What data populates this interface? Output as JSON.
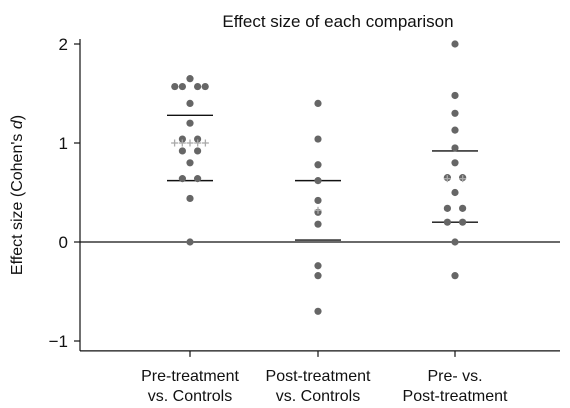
{
  "chart_data": {
    "type": "scatter",
    "title": "Effect size of each comparison",
    "ylabel_prefix": "Effect size (Cohen's ",
    "ylabel_symbol": "d",
    "ylabel_suffix": ")",
    "xlabel": "",
    "ylim": [
      -1.1,
      2.05
    ],
    "yticks": [
      {
        "value": -1,
        "label": "−1"
      },
      {
        "value": 0,
        "label": "0"
      },
      {
        "value": 1,
        "label": "1"
      },
      {
        "value": 2,
        "label": "2"
      }
    ],
    "categories": [
      {
        "line1": "Pre-treatment",
        "line2": "vs. Controls"
      },
      {
        "line1": "Post-treatment",
        "line2": "vs. Controls"
      },
      {
        "line1": "Pre- vs.",
        "line2": "Post-treatment"
      }
    ],
    "groups": [
      {
        "points": [
          {
            "y": 1.65,
            "off": 0
          },
          {
            "y": 1.57,
            "off": -2
          },
          {
            "y": 1.57,
            "off": -1
          },
          {
            "y": 1.57,
            "off": 1
          },
          {
            "y": 1.57,
            "off": 2
          },
          {
            "y": 1.4,
            "off": 0
          },
          {
            "y": 1.2,
            "off": 0
          },
          {
            "y": 1.04,
            "off": -1
          },
          {
            "y": 1.04,
            "off": 1
          },
          {
            "y": 0.92,
            "off": -1
          },
          {
            "y": 0.92,
            "off": 1
          },
          {
            "y": 0.8,
            "off": 0
          },
          {
            "y": 0.64,
            "off": -1
          },
          {
            "y": 0.64,
            "off": 1
          },
          {
            "y": 0.44,
            "off": 0
          },
          {
            "y": 0.0,
            "off": 0
          }
        ],
        "mean": 1.0,
        "ci": [
          0.62,
          1.28
        ]
      },
      {
        "points": [
          {
            "y": 1.4,
            "off": 0
          },
          {
            "y": 1.04,
            "off": 0
          },
          {
            "y": 0.78,
            "off": 0
          },
          {
            "y": 0.62,
            "off": 0
          },
          {
            "y": 0.42,
            "off": 0
          },
          {
            "y": 0.3,
            "off": 0
          },
          {
            "y": 0.18,
            "off": 0
          },
          {
            "y": -0.24,
            "off": 0
          },
          {
            "y": -0.34,
            "off": 0
          },
          {
            "y": -0.7,
            "off": 0
          }
        ],
        "mean": 0.32,
        "ci": [
          0.02,
          0.62
        ]
      },
      {
        "points": [
          {
            "y": 2.0,
            "off": 0
          },
          {
            "y": 1.48,
            "off": 0
          },
          {
            "y": 1.3,
            "off": 0
          },
          {
            "y": 1.13,
            "off": 0
          },
          {
            "y": 0.95,
            "off": 0
          },
          {
            "y": 0.8,
            "off": 0
          },
          {
            "y": 0.65,
            "off": -1
          },
          {
            "y": 0.65,
            "off": 1
          },
          {
            "y": 0.5,
            "off": 0
          },
          {
            "y": 0.34,
            "off": -1
          },
          {
            "y": 0.34,
            "off": 1
          },
          {
            "y": 0.2,
            "off": -1
          },
          {
            "y": 0.2,
            "off": 1
          },
          {
            "y": 0.0,
            "off": 0
          },
          {
            "y": -0.34,
            "off": 0
          }
        ],
        "mean": 0.64,
        "ci": [
          0.2,
          0.92
        ]
      }
    ],
    "point_color": "#666666",
    "mean_marker_color": "#aaaaaa",
    "ci_color": "#111111",
    "axis_color": "#111111",
    "grid": false,
    "legend": "none"
  }
}
